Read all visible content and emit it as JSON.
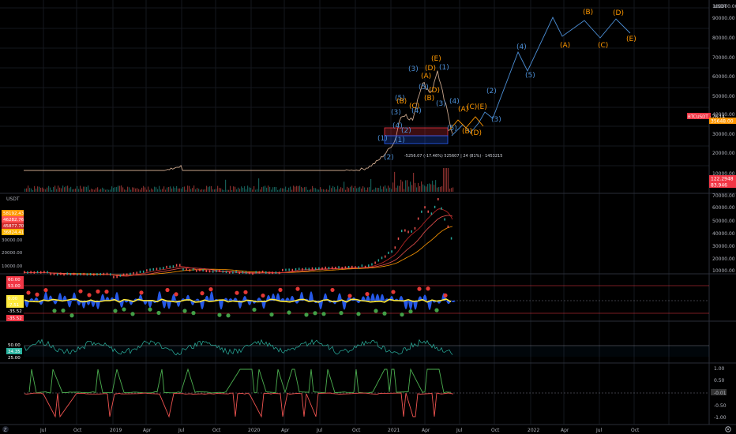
{
  "main_pane": {
    "currency": "USDT",
    "price_ticks": [
      "100000.00",
      "90000.00",
      "80000.00",
      "70000.00",
      "60000.00",
      "50000.00",
      "40000.00",
      "30000.00",
      "20000.00",
      "10000.00"
    ],
    "symbol_label": "BTCUSDT · 26:14",
    "price_tag_2": "35648.00",
    "volume_tag_1": "122.2948",
    "volume_tag_2": "83.946",
    "measure_text": "-5256.07 (-17.46%) 525607 | 24 (81%) · 1453215",
    "waves_blue": [
      {
        "label": "(1)"
      },
      {
        "label": "(2)"
      },
      {
        "label": "(3)"
      },
      {
        "label": "(4)"
      },
      {
        "label": "(5)"
      },
      {
        "label": "(1)"
      },
      {
        "label": "(2)"
      },
      {
        "label": "(3)"
      },
      {
        "label": "(4)"
      },
      {
        "label": "(5)"
      },
      {
        "label": "(3)"
      },
      {
        "label": "(4)"
      },
      {
        "label": "(5)"
      },
      {
        "label": "(1)"
      },
      {
        "label": "(2)"
      },
      {
        "label": "(3)"
      },
      {
        "label": "(4)"
      },
      {
        "label": "(5)"
      }
    ],
    "waves_orange": [
      {
        "label": "(A)"
      },
      {
        "label": "(B)"
      },
      {
        "label": "(C)"
      },
      {
        "label": "(D)"
      },
      {
        "label": "(E)"
      },
      {
        "label": "(A)"
      },
      {
        "label": "(B)"
      },
      {
        "label": "(C)"
      },
      {
        "label": "(D)"
      },
      {
        "label": "(E)"
      },
      {
        "label": "(A)"
      },
      {
        "label": "(B)"
      },
      {
        "label": "(C)"
      },
      {
        "label": "(D)"
      },
      {
        "label": "(E)"
      },
      {
        "label": "(B)"
      },
      {
        "label": "(D)"
      }
    ]
  },
  "pane2": {
    "currency": "USDT",
    "price_ticks": [
      "70000.00",
      "60000.00",
      "50000.00",
      "40000.00",
      "30000.00",
      "20000.00",
      "10000.00"
    ],
    "left_ticks": [
      "30000.00",
      "20000.00",
      "10000.00"
    ],
    "tags": [
      {
        "text": "58192.43",
        "color": "#ff9800"
      },
      {
        "text": "46282.76",
        "color": "#ff5252"
      },
      {
        "text": "45877.70",
        "color": "#d32f2f"
      },
      {
        "text": "36824.41",
        "color": "#ffb300"
      }
    ]
  },
  "pane3": {
    "tags": [
      {
        "text": "60.00",
        "color": "#f23645"
      },
      {
        "text": "53.00",
        "color": "#f23645"
      },
      {
        "text": "0.00",
        "color": "#ffeb3b"
      },
      {
        "text": "-7.51",
        "color": "#ffeb3b"
      },
      {
        "text": "-35.52",
        "color": "#000000"
      },
      {
        "text": "-35.52",
        "color": "#f23645"
      }
    ]
  },
  "pane4": {
    "ticks": [
      "50.00",
      "34.35",
      "25.00"
    ]
  },
  "pane5": {
    "ticks": [
      "1.00",
      "0.50",
      "-0.01",
      "-0.50",
      "-1.00"
    ]
  },
  "time_axis": {
    "labels": [
      "Jul",
      "Oct",
      "2019",
      "Apr",
      "Jul",
      "Oct",
      "2020",
      "Apr",
      "Jul",
      "Oct",
      "2021",
      "Apr",
      "Jul",
      "Oct",
      "2022",
      "Apr",
      "Jul",
      "Oct"
    ]
  },
  "colors": {
    "blue_wave": "#4c8fd6",
    "orange_wave": "#ff9800",
    "bull": "#26a69a",
    "bear": "#ef5350"
  }
}
